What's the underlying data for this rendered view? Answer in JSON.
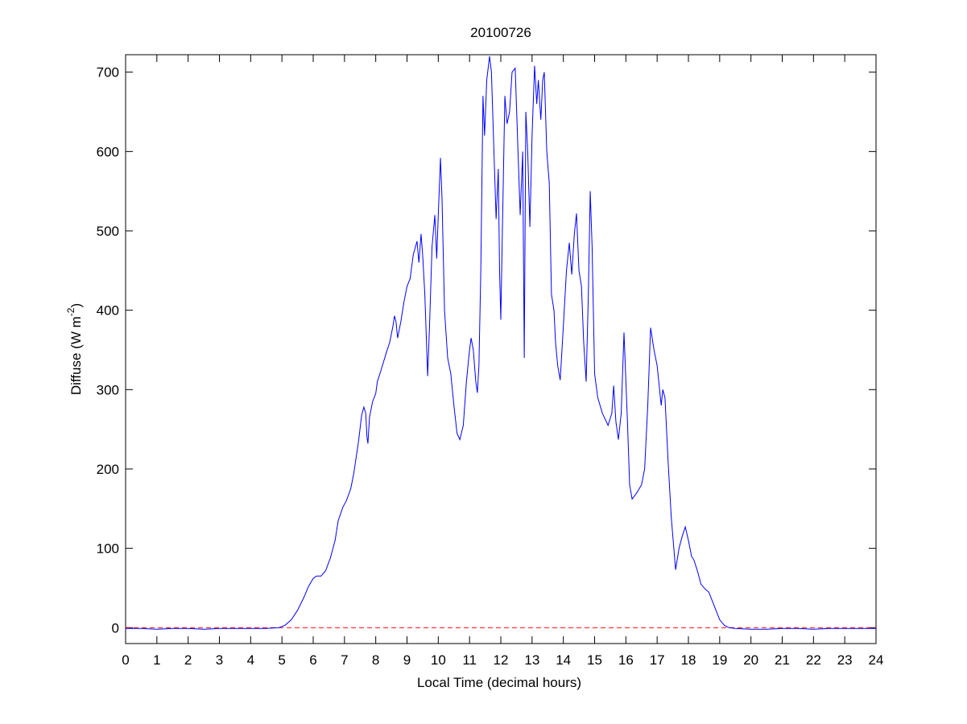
{
  "chart_data": {
    "type": "line",
    "title": "20100726",
    "xlabel": "Local Time (decimal hours)",
    "ylabel": [
      "Diffuse (W m",
      "-2",
      ")"
    ],
    "x": [
      0,
      0.5,
      1,
      1.5,
      2,
      2.5,
      3,
      3.5,
      4,
      4.5,
      4.9,
      5.1,
      5.3,
      5.5,
      5.7,
      5.85,
      6.0,
      6.1,
      6.25,
      6.4,
      6.55,
      6.7,
      6.8,
      6.95,
      7.06,
      7.2,
      7.3,
      7.45,
      7.55,
      7.62,
      7.68,
      7.72,
      7.75,
      7.8,
      7.9,
      8.0,
      8.05,
      8.15,
      8.25,
      8.35,
      8.45,
      8.55,
      8.6,
      8.65,
      8.7,
      8.8,
      8.9,
      9.0,
      9.05,
      9.1,
      9.2,
      9.32,
      9.38,
      9.42,
      9.45,
      9.5,
      9.57,
      9.66,
      9.72,
      9.8,
      9.89,
      9.95,
      10.0,
      10.07,
      10.12,
      10.2,
      10.3,
      10.4,
      10.5,
      10.6,
      10.69,
      10.8,
      10.9,
      11.0,
      11.05,
      11.12,
      11.2,
      11.25,
      11.3,
      11.36,
      11.43,
      11.48,
      11.55,
      11.64,
      11.7,
      11.78,
      11.85,
      11.92,
      11.96,
      12.0,
      12.05,
      12.13,
      12.2,
      12.28,
      12.36,
      12.46,
      12.55,
      12.62,
      12.7,
      12.75,
      12.8,
      12.86,
      12.93,
      13.0,
      13.08,
      13.15,
      13.2,
      13.28,
      13.34,
      13.39,
      13.47,
      13.55,
      13.62,
      13.7,
      13.75,
      13.82,
      13.9,
      14.0,
      14.1,
      14.19,
      14.27,
      14.35,
      14.42,
      14.5,
      14.58,
      14.65,
      14.73,
      14.8,
      14.86,
      14.92,
      15.0,
      15.1,
      15.25,
      15.43,
      15.55,
      15.61,
      15.68,
      15.76,
      15.85,
      15.94,
      16.05,
      16.12,
      16.2,
      16.35,
      16.5,
      16.6,
      16.7,
      16.79,
      16.9,
      17.0,
      17.13,
      17.18,
      17.25,
      17.35,
      17.45,
      17.59,
      17.7,
      17.8,
      17.9,
      18.0,
      18.1,
      18.18,
      18.3,
      18.4,
      18.55,
      18.65,
      18.75,
      18.85,
      19.0,
      19.15,
      19.3,
      19.5,
      20,
      20.5,
      21,
      21.5,
      22,
      22.5,
      23,
      23.5,
      24
    ],
    "values": [
      -1,
      -1,
      -2,
      -1,
      -1,
      -2,
      -1,
      -1,
      -1,
      -1,
      0,
      3,
      10,
      22,
      38,
      52,
      62,
      65,
      65,
      72,
      88,
      110,
      135,
      152,
      160,
      175,
      195,
      235,
      268,
      278,
      270,
      240,
      232,
      265,
      285,
      295,
      310,
      322,
      335,
      348,
      360,
      380,
      393,
      385,
      365,
      385,
      410,
      430,
      435,
      440,
      470,
      487,
      460,
      480,
      496,
      470,
      420,
      317,
      380,
      480,
      520,
      465,
      520,
      592,
      540,
      400,
      340,
      320,
      280,
      245,
      237,
      255,
      310,
      350,
      365,
      350,
      310,
      296,
      330,
      450,
      670,
      620,
      690,
      720,
      700,
      600,
      515,
      578,
      450,
      388,
      500,
      670,
      635,
      650,
      700,
      705,
      600,
      520,
      600,
      340,
      650,
      600,
      505,
      620,
      708,
      660,
      690,
      640,
      690,
      700,
      600,
      560,
      420,
      400,
      360,
      330,
      312,
      380,
      450,
      485,
      445,
      495,
      522,
      450,
      430,
      360,
      310,
      420,
      550,
      480,
      320,
      290,
      270,
      255,
      270,
      305,
      260,
      237,
      270,
      372,
      260,
      180,
      162,
      170,
      180,
      200,
      280,
      378,
      350,
      330,
      280,
      300,
      290,
      210,
      140,
      73,
      100,
      115,
      127,
      110,
      90,
      85,
      70,
      55,
      48,
      45,
      35,
      25,
      10,
      3,
      0,
      -1,
      -2,
      -2,
      -1,
      -1,
      -2,
      -1,
      -1,
      -1,
      -1
    ],
    "color": "#0000ff",
    "reference_line": {
      "value": 0,
      "color": "#ff0000",
      "style": "dashed"
    },
    "xlim": [
      0,
      24
    ],
    "ylim": [
      -20,
      722
    ],
    "xticks": [
      0,
      1,
      2,
      3,
      4,
      5,
      6,
      7,
      8,
      9,
      10,
      11,
      12,
      13,
      14,
      15,
      16,
      17,
      18,
      19,
      20,
      21,
      22,
      23,
      24
    ],
    "yticks": [
      0,
      100,
      200,
      300,
      400,
      500,
      600,
      700
    ],
    "grid": false
  }
}
